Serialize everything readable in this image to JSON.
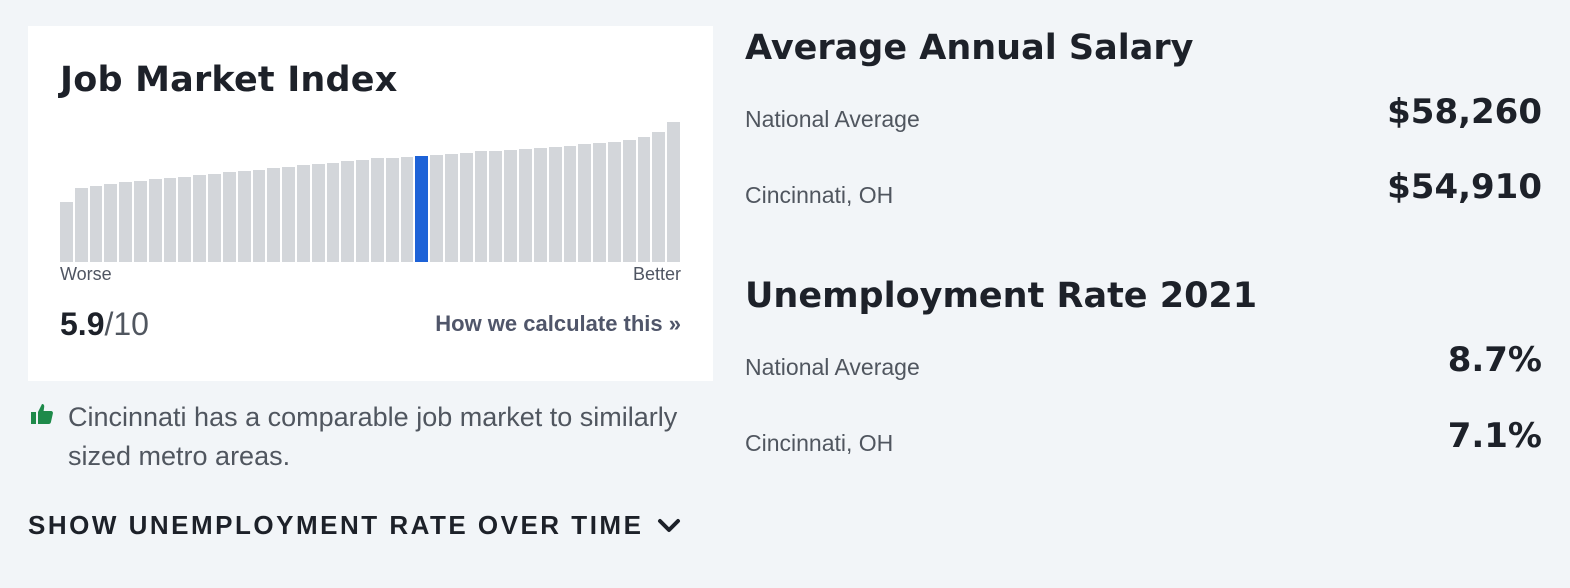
{
  "job_market": {
    "title": "Job Market Index",
    "scale_low": "Worse",
    "scale_high": "Better",
    "score_value": "5.9",
    "score_sep": "/",
    "score_max": "10",
    "calc_link": "How we calculate this »",
    "highlight_color": "#1d62d7",
    "bar_color": "#d3d6da",
    "active_index": 24,
    "bar_levels": [
      0.43,
      0.53,
      0.54,
      0.56,
      0.57,
      0.58,
      0.59,
      0.6,
      0.61,
      0.62,
      0.63,
      0.64,
      0.65,
      0.66,
      0.67,
      0.68,
      0.69,
      0.7,
      0.71,
      0.72,
      0.73,
      0.74,
      0.745,
      0.75,
      0.76,
      0.765,
      0.77,
      0.78,
      0.79,
      0.795,
      0.8,
      0.81,
      0.815,
      0.82,
      0.83,
      0.84,
      0.85,
      0.86,
      0.87,
      0.89,
      0.93,
      1.0
    ]
  },
  "note": {
    "icon": "thumbs-up-icon",
    "icon_color": "#1e8a4a",
    "text": "Cincinnati has a comparable job market to similarly sized metro areas."
  },
  "toggle": {
    "label": "SHOW UNEMPLOYMENT RATE OVER TIME",
    "icon": "chevron-down-icon"
  },
  "salary": {
    "title": "Average Annual Salary",
    "rows": [
      {
        "label": "National Average",
        "value": "$58,260"
      },
      {
        "label": "Cincinnati, OH",
        "value": "$54,910"
      }
    ]
  },
  "unemployment": {
    "title": "Unemployment Rate 2021",
    "rows": [
      {
        "label": "National Average",
        "value": "8.7%"
      },
      {
        "label": "Cincinnati, OH",
        "value": "7.1%"
      }
    ]
  }
}
